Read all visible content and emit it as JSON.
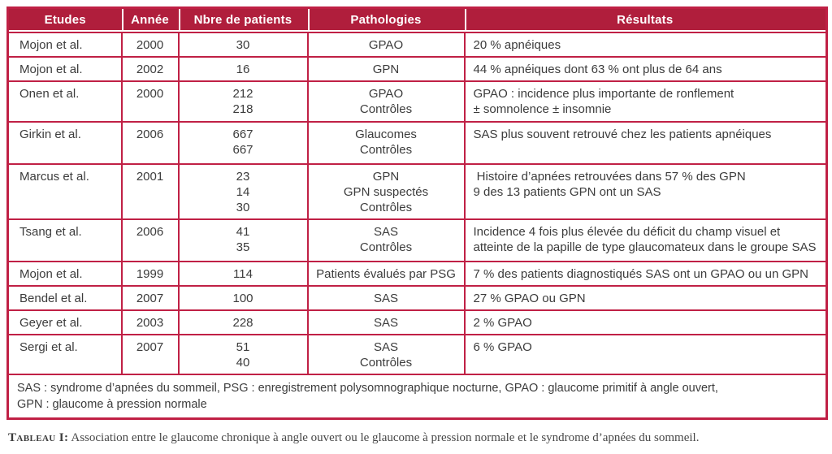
{
  "colors": {
    "header_bg": "#b01e3c",
    "grid": "#c02045",
    "header_text": "#ffffff",
    "body_text": "#3c3c3c",
    "caption_text": "#474747"
  },
  "table": {
    "headers": [
      "Etudes",
      "Année",
      "Nbre de patients",
      "Pathologies",
      "Résultats"
    ],
    "rows": [
      {
        "etude": "Mojon et al.",
        "annee": "2000",
        "patients": [
          "30"
        ],
        "pathologies": [
          "GPAO"
        ],
        "resultats": [
          "20 % apnéiques"
        ]
      },
      {
        "etude": "Mojon et al.",
        "annee": "2002",
        "patients": [
          "16"
        ],
        "pathologies": [
          "GPN"
        ],
        "resultats": [
          "44 % apnéiques dont 63 % ont plus de 64 ans"
        ]
      },
      {
        "etude": "Onen et al.",
        "annee": "2000",
        "patients": [
          "212",
          "218"
        ],
        "pathologies": [
          "GPAO",
          "Contrôles"
        ],
        "resultats": [
          "GPAO : incidence plus importante de ronflement",
          "± somnolence ± insomnie"
        ]
      },
      {
        "etude": "Girkin et al.",
        "annee": "2006",
        "patients": [
          "667",
          "667"
        ],
        "pathologies": [
          "Glaucomes",
          "Contrôles"
        ],
        "resultats": [
          "SAS plus souvent retrouvé chez les patients apnéiques"
        ]
      },
      {
        "etude": "Marcus et al.",
        "annee": "2001",
        "patients": [
          "23",
          "14",
          "30"
        ],
        "pathologies": [
          "GPN",
          "GPN suspectés",
          "Contrôles"
        ],
        "resultats": [
          " Histoire d’apnées retrouvées dans 57 % des GPN",
          "9 des 13 patients GPN ont un SAS"
        ]
      },
      {
        "etude": "Tsang et al.",
        "annee": "2006",
        "patients": [
          "41",
          "35"
        ],
        "pathologies": [
          "SAS",
          "Contrôles"
        ],
        "resultats": [
          "Incidence 4 fois plus élevée du déficit du champ visuel et",
          "atteinte de la papille de type glaucomateux dans le groupe SAS"
        ]
      },
      {
        "etude": "Mojon et al.",
        "annee": "1999",
        "patients": [
          "114"
        ],
        "pathologies": [
          "Patients évalués par PSG"
        ],
        "resultats": [
          "7 % des patients diagnostiqués SAS ont un GPAO ou un GPN"
        ]
      },
      {
        "etude": "Bendel et al.",
        "annee": "2007",
        "patients": [
          "100"
        ],
        "pathologies": [
          "SAS"
        ],
        "resultats": [
          "27 % GPAO ou GPN"
        ]
      },
      {
        "etude": "Geyer et al.",
        "annee": "2003",
        "patients": [
          "228"
        ],
        "pathologies": [
          "SAS"
        ],
        "resultats": [
          "2 % GPAO"
        ]
      },
      {
        "etude": "Sergi et al.",
        "annee": "2007",
        "patients": [
          "51",
          "40"
        ],
        "pathologies": [
          "SAS",
          "Contrôles"
        ],
        "resultats": [
          "6 % GPAO"
        ]
      }
    ],
    "footnote": [
      "SAS : syndrome d’apnées du sommeil, PSG : enregistrement polysomnographique nocturne, GPAO : glaucome primitif à angle ouvert,",
      "GPN : glaucome à pression normale"
    ]
  },
  "caption": {
    "label": "Tableau I:",
    "text": " Association entre le glaucome chronique à angle ouvert ou le glaucome à pression normale et le syndrome d’apnées du sommeil."
  }
}
